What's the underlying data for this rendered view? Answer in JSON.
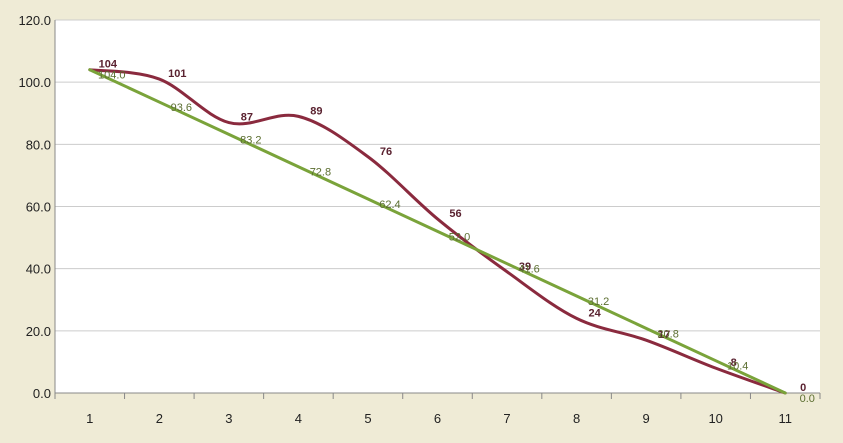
{
  "colors": {
    "plot_background": "#ffffff",
    "page_background": "#efebd6",
    "actual_line": "#8a2a3e",
    "ideal_line": "#7aa33a",
    "grid": "#cccccc"
  },
  "chart_data": {
    "type": "line",
    "x": [
      1,
      2,
      3,
      4,
      5,
      6,
      7,
      8,
      9,
      10,
      11
    ],
    "ylim": [
      0,
      120
    ],
    "yticks": [
      "0.0",
      "20.0",
      "40.0",
      "60.0",
      "80.0",
      "100.0",
      "120.0"
    ],
    "xticks": [
      "1",
      "2",
      "3",
      "4",
      "5",
      "6",
      "7",
      "8",
      "9",
      "10",
      "11"
    ],
    "grid": "horizontal",
    "legend": "none",
    "series": [
      {
        "values": [
          104,
          101,
          87,
          89,
          76,
          56,
          39,
          24,
          17,
          8,
          0
        ],
        "labels": [
          "104",
          "101",
          "87",
          "89",
          "76",
          "56",
          "39",
          "24",
          "17",
          "8",
          "0"
        ],
        "color": "#8a2a3e",
        "smooth": true
      },
      {
        "values": [
          104.0,
          93.6,
          83.2,
          72.8,
          62.4,
          52.0,
          41.6,
          31.2,
          20.8,
          10.4,
          0.0
        ],
        "labels": [
          "104.0",
          "93.6",
          "83.2",
          "72.8",
          "62.4",
          "52.0",
          "41.6",
          "31.2",
          "20.8",
          "10.4",
          "0.0"
        ],
        "color": "#7aa33a",
        "smooth": false
      }
    ]
  }
}
